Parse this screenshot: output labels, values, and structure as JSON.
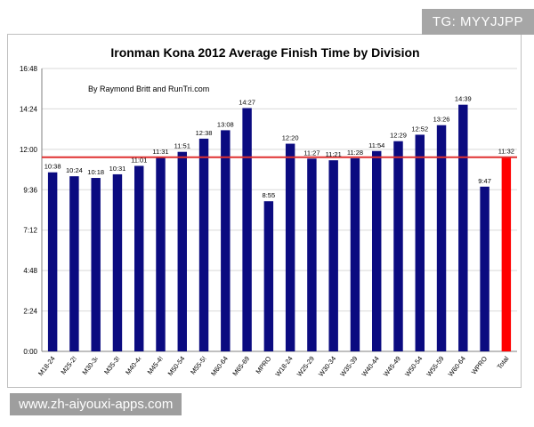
{
  "watermarks": {
    "top": "TG: MYYJJPP",
    "bottom": "www.zh-aiyouxi-apps.com"
  },
  "chart_data": {
    "type": "bar",
    "title": "Ironman Kona 2012 Average Finish Time by Division",
    "subtitle": "By Raymond Britt and RunTri.com",
    "xlabel": "",
    "ylabel": "",
    "y_tick_labels": [
      "0:00",
      "2:24",
      "4:48",
      "7:12",
      "9:36",
      "12:00",
      "14:24",
      "16:48"
    ],
    "ylim_minutes": [
      0,
      1008
    ],
    "grid": true,
    "legend": "none",
    "categories": [
      "M18-24",
      "M25-29",
      "M30-34",
      "M35-39",
      "M40-44",
      "M45-49",
      "M50-54",
      "M55-59",
      "M60-64",
      "M65-69",
      "MPRO",
      "W18-24",
      "W25-29",
      "W30-34",
      "W35-39",
      "W40-44",
      "W45-49",
      "W50-54",
      "W55-59",
      "W60-64",
      "WPRO",
      "Total"
    ],
    "category_labels": [
      "M18-24",
      "M25-2!",
      "M30-3‹",
      "M35-3!",
      "M40-4‹",
      "M45-4!",
      "M50-54",
      "M55-5!",
      "M60-64",
      "M65-69",
      "MPRO",
      "W18-24",
      "W25-29",
      "W30-34",
      "W35-39",
      "W40-44",
      "W45-49",
      "W50-54",
      "W55-59",
      "W60-64",
      "WPRO",
      "Total"
    ],
    "value_labels": [
      "10:38",
      "10:24",
      "10:18",
      "10:31",
      "11:01",
      "11:31",
      "11:51",
      "12:38",
      "13:08",
      "14:27",
      "8:55",
      "12:20",
      "11:27",
      "11:21",
      "11:28",
      "11:54",
      "12:29",
      "12:52",
      "13:26",
      "14:39",
      "9:47",
      "11:32"
    ],
    "values_minutes": [
      638,
      624,
      618,
      631,
      661,
      691,
      711,
      758,
      788,
      867,
      535,
      740,
      687,
      681,
      688,
      714,
      749,
      772,
      806,
      879,
      587,
      692
    ],
    "reference_line_minutes": 692,
    "colors": {
      "bar": "#0b0b80",
      "total_bar": "#ff0000",
      "reference_line": "#e03030",
      "grid": "#d9d9d9"
    }
  }
}
